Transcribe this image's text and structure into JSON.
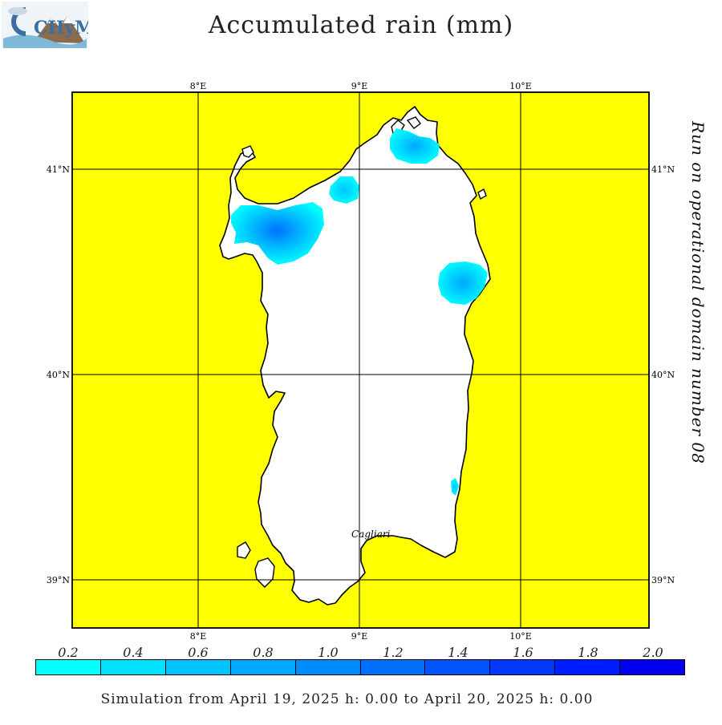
{
  "header": {
    "title": "Accumulated rain (mm)",
    "logo_text": "CHyM"
  },
  "map": {
    "run_label": "Run on operational domain number 08",
    "top_lon_ticks": [
      "8°E",
      "9°E",
      "10°E"
    ],
    "bottom_lon_ticks": [
      "8°E",
      "9°E",
      "10°E"
    ],
    "left_lat_ticks": [
      "41°N",
      "40°N",
      "39°N"
    ],
    "right_lat_ticks": [
      "41°N",
      "40°N",
      "39°N"
    ],
    "city_label": "Cagliari",
    "sea_color": "#ffff00",
    "land_color": "#ffffff",
    "coast_color": "#000000"
  },
  "legend": {
    "values": [
      "0.2",
      "0.4",
      "0.6",
      "0.8",
      "1.0",
      "1.2",
      "1.4",
      "1.6",
      "1.8",
      "2.0"
    ],
    "colors": [
      "#00ffff",
      "#00e0ff",
      "#00c4ff",
      "#00a8ff",
      "#008cff",
      "#0070ff",
      "#0054ff",
      "#0038ff",
      "#001cff",
      "#0000ee"
    ]
  },
  "footer": {
    "text": "Simulation from April 19, 2025 h: 0.00 to April 20, 2025 h: 0.00"
  }
}
